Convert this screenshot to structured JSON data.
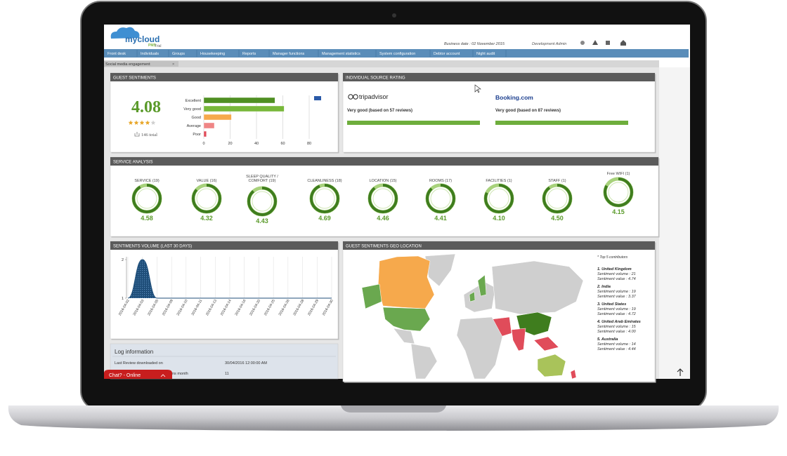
{
  "header": {
    "logo": "mycloud",
    "logo_sub": "PMS",
    "edition": "Trial",
    "business_date": "Business date : 02 November 2015",
    "user": "Development Admin"
  },
  "nav": [
    "Front desk",
    "Individuals",
    "Groups",
    "Housekeeping",
    "Reports",
    "Manager functions",
    "Management statistics",
    "System configuration",
    "Debtor account",
    "Night audit"
  ],
  "tab": "Social media engagement",
  "guest_sentiments": {
    "title": "GUEST SENTIMENTS",
    "score": "4.08",
    "total": "146 total",
    "chart": {
      "type": "bar",
      "orientation": "horizontal",
      "categories": [
        "Excellent",
        "Very good",
        "Good",
        "Average",
        "Poor"
      ],
      "values": [
        54,
        61,
        21,
        8,
        2
      ],
      "colors": [
        "#4f8f22",
        "#78b83a",
        "#f6a94c",
        "#ef8585",
        "#e04c5a"
      ],
      "xlim": [
        0,
        80
      ],
      "xticks": [
        0,
        20,
        40,
        60,
        80
      ],
      "grid": true
    }
  },
  "source_rating": {
    "title": "INDIVIDUAL SOURCE RATING",
    "sources": [
      {
        "name": "tripadvisor",
        "rating": "Very good (based on 57 reviews)"
      },
      {
        "name": "Booking.com",
        "rating": "Very good (based on 87 reviews)"
      }
    ]
  },
  "service_analysis": {
    "title": "SERVICE ANALYSIS",
    "items": [
      {
        "label": [
          "SERVICE (19)"
        ],
        "score": "4.58"
      },
      {
        "label": [
          "VALUE (16)"
        ],
        "score": "4.32"
      },
      {
        "label": [
          "SLEEP QUALITY /",
          "COMFORT (19)"
        ],
        "score": "4.43"
      },
      {
        "label": [
          "CLEANLINESS (18)"
        ],
        "score": "4.69"
      },
      {
        "label": [
          "LOCATION (15)"
        ],
        "score": "4.46"
      },
      {
        "label": [
          "ROOMS (17)"
        ],
        "score": "4.41"
      },
      {
        "label": [
          "FACILITIES (1)"
        ],
        "score": "4.10"
      },
      {
        "label": [
          "STAFF (1)"
        ],
        "score": "4.50"
      },
      {
        "label": [
          "Free WIFI (1)"
        ],
        "score": "4.15"
      }
    ]
  },
  "sentiments_volume": {
    "title": "SENTIMENTS VOLUME (LAST 30 DAYS)",
    "chart": {
      "type": "area",
      "categories": [
        "2016-04-02",
        "2016-04-03",
        "2016-04-05",
        "2016-04-09",
        "2016-04-10",
        "2016-04-11",
        "2016-04-13",
        "2016-04-14",
        "2016-04-16",
        "2016-04-20",
        "2016-04-25",
        "2016-04-26",
        "2016-04-28",
        "2016-04-29",
        "2016-04-30"
      ],
      "values": [
        1,
        2,
        1,
        1,
        1,
        1,
        1,
        1,
        1,
        1,
        1,
        1,
        1,
        1,
        1
      ],
      "color": "#1f4e79",
      "ylim": [
        1,
        2
      ],
      "yticks": [
        1,
        2
      ],
      "grid": true
    }
  },
  "geo_location": {
    "title": "GUEST SENTIMENTS GEO LOCATION",
    "note": "* Top 5 contributors",
    "contributors": [
      {
        "name": "1. United Kingdom",
        "volume": "Sentiment volume : 21",
        "value": "Sentiment value : 4.74"
      },
      {
        "name": "2. India",
        "volume": "Sentiment volume : 19",
        "value": "Sentiment value : 3.37"
      },
      {
        "name": "3. United States",
        "volume": "Sentiment volume : 19",
        "value": "Sentiment value : 4.72"
      },
      {
        "name": "4. United Arab Emirates",
        "volume": "Sentiment volume : 15",
        "value": "Sentiment value : 4.00"
      },
      {
        "name": "5. Australia",
        "volume": "Sentiment volume : 14",
        "value": "Sentiment value : 4.44"
      }
    ]
  },
  "log": {
    "title": "Log information",
    "rows": [
      [
        "Last Review downloaded on",
        "30/04/2016 12:00:00 AM"
      ],
      [
        "ns month",
        "11"
      ]
    ]
  },
  "chat": "Chat? - Online"
}
